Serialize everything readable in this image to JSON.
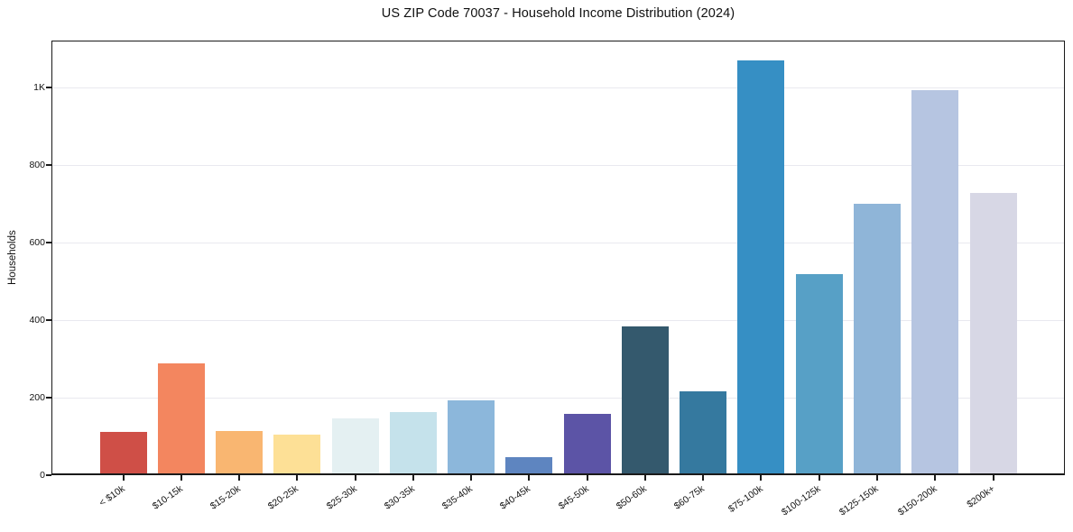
{
  "title": "US ZIP Code 70037 - Household Income Distribution (2024)",
  "chart_data": {
    "type": "bar",
    "title": "US ZIP Code 70037 - Household Income Distribution (2024)",
    "xlabel": "",
    "ylabel": "Households",
    "categories": [
      "< $10k",
      "$10-15k",
      "$15-20k",
      "$20-25k",
      "$25-30k",
      "$30-35k",
      "$35-40k",
      "$40-45k",
      "$45-50k",
      "$50-60k",
      "$60-75k",
      "$75-100k",
      "$100-125k",
      "$125-150k",
      "$150-200k",
      "$200k+"
    ],
    "values": [
      111,
      289,
      115,
      105,
      147,
      163,
      194,
      47,
      158,
      385,
      216,
      1070,
      519,
      700,
      995,
      729
    ],
    "bar_colors": [
      "#cf4f47",
      "#f3865f",
      "#f9b671",
      "#fde096",
      "#e4f0f2",
      "#c5e2eb",
      "#8cb7db",
      "#5e85c0",
      "#5c54a6",
      "#34596d",
      "#35799f",
      "#368fc4",
      "#57a0c6",
      "#8fb5d8",
      "#b6c5e1",
      "#d7d7e5"
    ],
    "ylim": [
      0,
      1122
    ],
    "yticks": [
      {
        "value": 0,
        "label": "0"
      },
      {
        "value": 200,
        "label": "200"
      },
      {
        "value": 400,
        "label": "400"
      },
      {
        "value": 600,
        "label": "600"
      },
      {
        "value": 800,
        "label": "800"
      },
      {
        "value": 1000,
        "label": "1K"
      }
    ],
    "grid": "horizontal-only",
    "legend": "none",
    "colors": {
      "axis": "#1a1a1a",
      "grid": "#e9e9ef",
      "text": "#141414",
      "background": "#ffffff"
    }
  }
}
